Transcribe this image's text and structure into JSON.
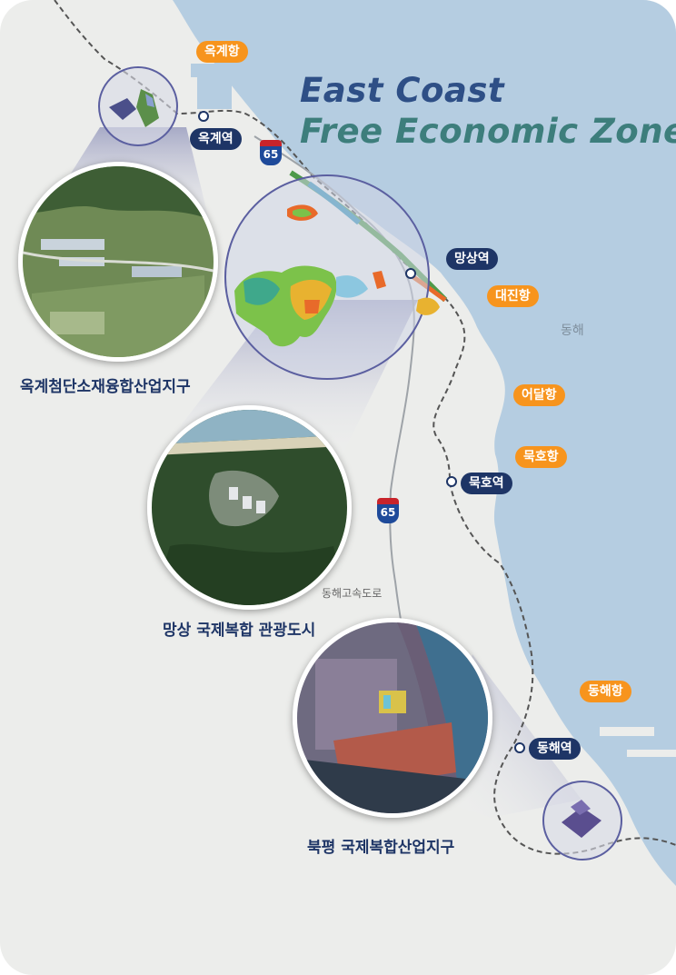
{
  "title": {
    "line1": "East Coast",
    "line2": "Free Economic Zone"
  },
  "ports": {
    "okgye": "옥계항",
    "daejin": "대진항",
    "eodal": "어달항",
    "mukho": "묵호항",
    "donghae": "동해항"
  },
  "stations": {
    "okgye": "옥계역",
    "mangsang": "망상역",
    "mukho": "묵호역",
    "donghae": "동해역"
  },
  "sea_label": "동해",
  "highway": {
    "number": "65",
    "name": "동해고속도로"
  },
  "zones": {
    "okgye": "옥계첨단소재융합산업지구",
    "mangsang": "망상 국제복합 관광도시",
    "bukpyeong": "북평 국제복합산업지구"
  },
  "colors": {
    "title_blue": "#2e4f86",
    "title_teal": "#3d7e7c",
    "port_orange": "#f7941d",
    "station_navy": "#1e3566",
    "sea": "#b5cde1",
    "land": "#ecedeb"
  }
}
